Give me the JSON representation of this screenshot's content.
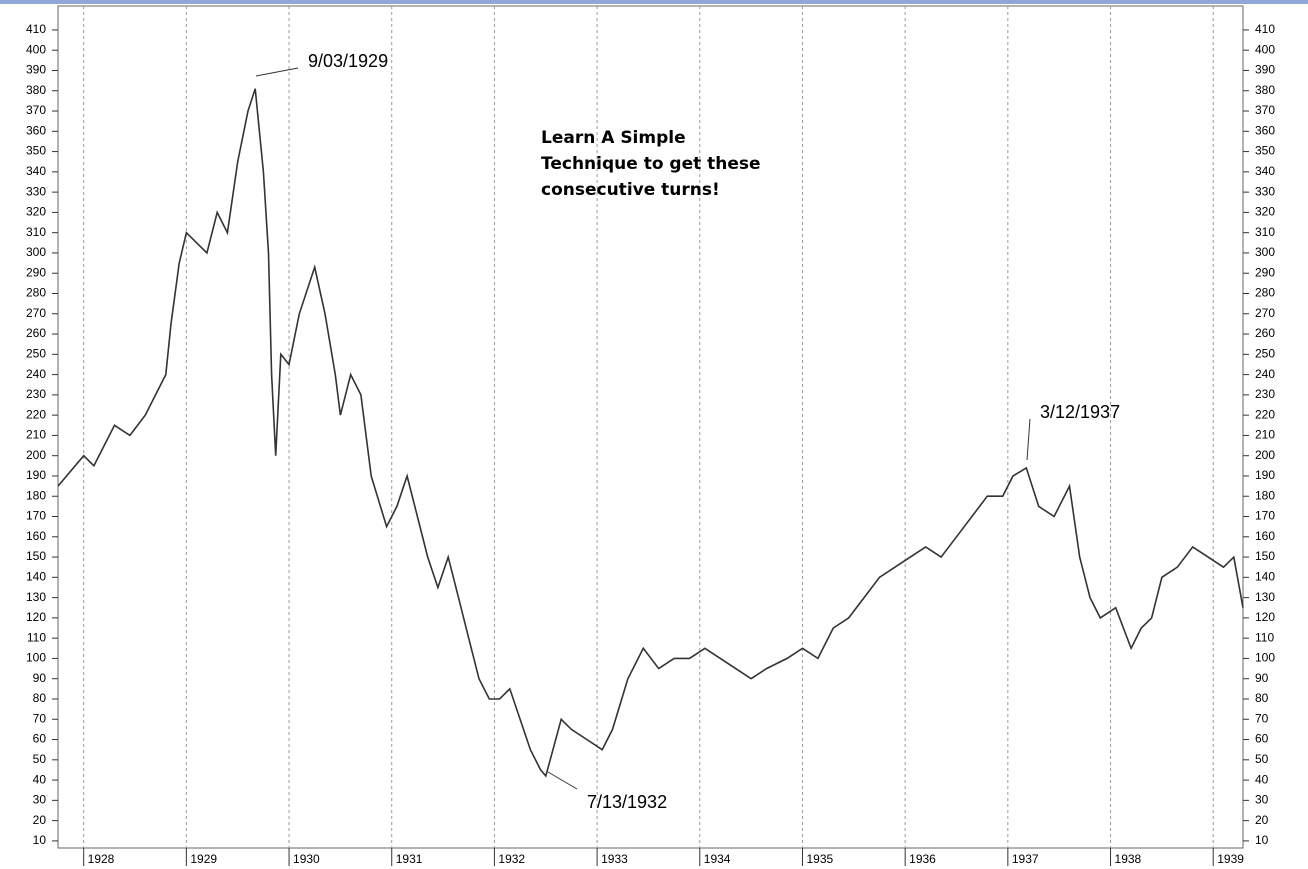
{
  "chart_data": {
    "type": "line",
    "x": [
      1927.75,
      1928.0,
      1928.1,
      1928.3,
      1928.45,
      1928.6,
      1928.8,
      1928.85,
      1928.93,
      1929.0,
      1929.1,
      1929.2,
      1929.3,
      1929.4,
      1929.5,
      1929.6,
      1929.67,
      1929.75,
      1929.8,
      1929.83,
      1929.87,
      1929.92,
      1930.0,
      1930.1,
      1930.25,
      1930.35,
      1930.45,
      1930.5,
      1930.6,
      1930.7,
      1930.8,
      1930.95,
      1931.05,
      1931.15,
      1931.25,
      1931.35,
      1931.45,
      1931.55,
      1931.65,
      1931.75,
      1931.85,
      1931.95,
      1932.05,
      1932.15,
      1932.25,
      1932.35,
      1932.45,
      1932.5,
      1932.65,
      1932.75,
      1932.9,
      1933.05,
      1933.15,
      1933.3,
      1933.45,
      1933.6,
      1933.75,
      1933.9,
      1934.05,
      1934.2,
      1934.35,
      1934.5,
      1934.65,
      1934.85,
      1935.0,
      1935.15,
      1935.3,
      1935.45,
      1935.6,
      1935.75,
      1935.9,
      1936.05,
      1936.2,
      1936.35,
      1936.5,
      1936.65,
      1936.8,
      1936.95,
      1937.05,
      1937.18,
      1937.3,
      1937.45,
      1937.6,
      1937.7,
      1937.8,
      1937.9,
      1938.05,
      1938.2,
      1938.3,
      1938.4,
      1938.5,
      1938.65,
      1938.8,
      1938.95,
      1939.1,
      1939.2,
      1939.29
    ],
    "series": [
      {
        "color": "#333333",
        "values": [
          185,
          200,
          195,
          215,
          210,
          220,
          240,
          265,
          295,
          310,
          305,
          300,
          320,
          310,
          345,
          370,
          381,
          340,
          300,
          240,
          200,
          250,
          245,
          270,
          293,
          270,
          240,
          220,
          240,
          230,
          190,
          165,
          175,
          190,
          170,
          150,
          135,
          150,
          130,
          110,
          90,
          80,
          80,
          85,
          70,
          55,
          45,
          42,
          70,
          65,
          60,
          55,
          65,
          90,
          105,
          95,
          100,
          100,
          105,
          100,
          95,
          90,
          95,
          100,
          105,
          100,
          115,
          120,
          130,
          140,
          145,
          150,
          155,
          150,
          160,
          170,
          180,
          180,
          190,
          194,
          175,
          170,
          185,
          150,
          130,
          120,
          125,
          105,
          115,
          120,
          140,
          145,
          155,
          150,
          145,
          150,
          125
        ]
      }
    ],
    "xlim": [
      1927.75,
      1939.29
    ],
    "xticks": [
      1928,
      1929,
      1930,
      1931,
      1932,
      1933,
      1934,
      1935,
      1936,
      1937,
      1938,
      1939
    ],
    "ylim": [
      6.5,
      421.8
    ],
    "yticks": [
      10,
      20,
      30,
      40,
      50,
      60,
      70,
      80,
      90,
      100,
      110,
      120,
      130,
      140,
      150,
      160,
      170,
      180,
      190,
      200,
      210,
      220,
      230,
      240,
      250,
      260,
      270,
      280,
      290,
      300,
      310,
      320,
      330,
      340,
      350,
      360,
      370,
      380,
      390,
      400,
      410
    ],
    "grid": "x",
    "annotations": [
      "9/03/1929",
      "7/13/1932",
      "3/12/1937"
    ],
    "note": [
      "Learn A Simple",
      "Technique to get these",
      "consecutive turns!"
    ]
  }
}
